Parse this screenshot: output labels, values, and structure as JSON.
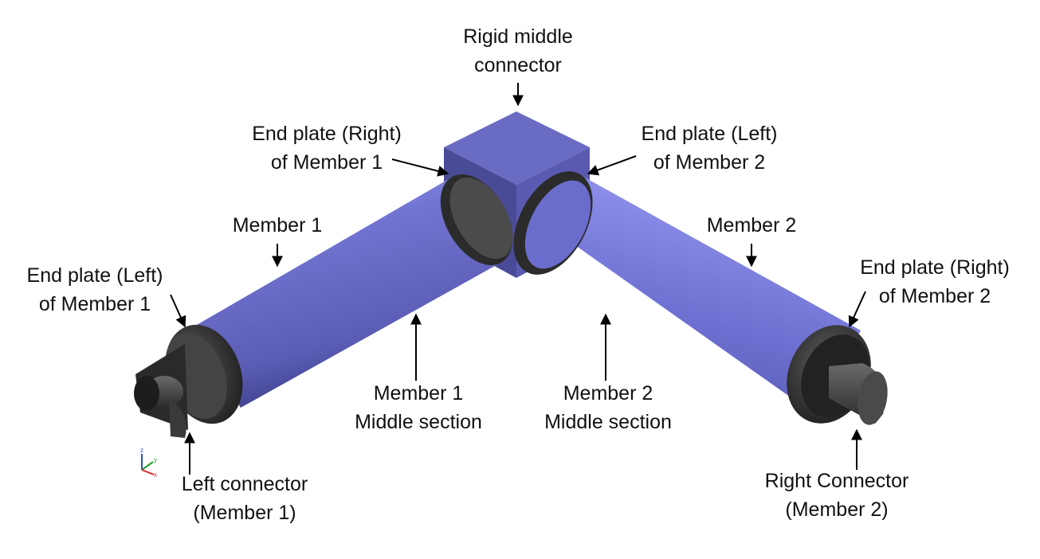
{
  "labels": {
    "rigid_middle_connector": [
      "Rigid middle",
      "connector"
    ],
    "end_plate_right_m1": [
      "End plate (Right)",
      "of Member 1"
    ],
    "end_plate_left_m2": [
      "End plate (Left)",
      "of Member 2"
    ],
    "member1": [
      "Member 1"
    ],
    "member2": [
      "Member 2"
    ],
    "end_plate_left_m1": [
      "End plate (Left)",
      "of Member 1"
    ],
    "end_plate_right_m2": [
      "End plate (Right)",
      "of Member 2"
    ],
    "member1_middle": [
      "Member 1",
      "Middle section"
    ],
    "member2_middle": [
      "Member 2",
      "Middle section"
    ],
    "left_connector": [
      "Left connector",
      "(Member 1)"
    ],
    "right_connector": [
      "Right Connector",
      "(Member 2)"
    ]
  },
  "triad": {
    "z": "z",
    "y": "y",
    "x": "x"
  },
  "colors": {
    "member": "#6a6cc4",
    "cube": "#5f60b2",
    "plate": "#3a3a3a",
    "connector": "#444444",
    "arrow": "#000000"
  }
}
